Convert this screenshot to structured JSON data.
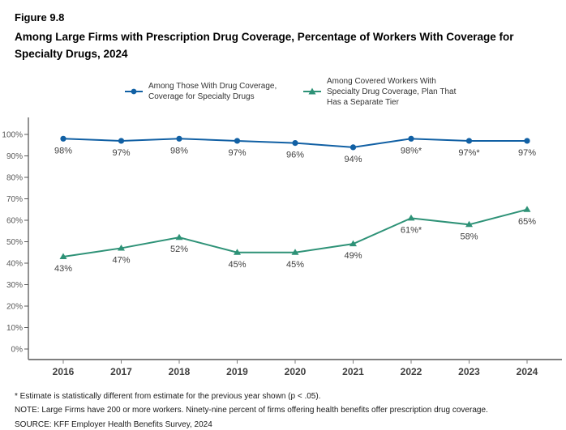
{
  "figure": {
    "number": "Figure 9.8",
    "title": "Among Large Firms with Prescription Drug Coverage, Percentage of Workers With Coverage for Specialty Drugs, 2024"
  },
  "legend": {
    "items": [
      {
        "label": "Among Those With Drug Coverage, Coverage for Specialty Drugs",
        "color": "#1160a4",
        "marker": "circle"
      },
      {
        "label": "Among Covered Workers With Specialty Drug Coverage, Plan That Has a Separate Tier",
        "color": "#2e9277",
        "marker": "triangle"
      }
    ]
  },
  "chart_data": {
    "type": "line",
    "title": "Among Large Firms with Prescription Drug Coverage, Percentage of Workers With Coverage for Specialty Drugs, 2024",
    "figure_number": "Figure 9.8",
    "categories": [
      "2016",
      "2017",
      "2018",
      "2019",
      "2020",
      "2021",
      "2022",
      "2023",
      "2024"
    ],
    "series": [
      {
        "name": "Among Those With Drug Coverage, Coverage for Specialty Drugs",
        "color": "#1160a4",
        "marker": "circle",
        "values": [
          98,
          97,
          98,
          97,
          96,
          94,
          98,
          97,
          97
        ],
        "labels": [
          "98%",
          "97%",
          "98%",
          "97%",
          "96%",
          "94%",
          "98%*",
          "97%*",
          "97%"
        ]
      },
      {
        "name": "Among Covered Workers With Specialty Drug Coverage, Plan That Has a Separate Tier",
        "color": "#2e9277",
        "marker": "triangle",
        "values": [
          43,
          47,
          52,
          45,
          45,
          49,
          61,
          58,
          65
        ],
        "labels": [
          "43%",
          "47%",
          "52%",
          "45%",
          "45%",
          "49%",
          "61%*",
          "58%",
          "65%"
        ]
      }
    ],
    "xlabel": "",
    "ylabel": "",
    "ylim": [
      0,
      100
    ],
    "y_ticks": [
      "0%",
      "10%",
      "20%",
      "30%",
      "40%",
      "50%",
      "60%",
      "70%",
      "80%",
      "90%",
      "100%"
    ],
    "grid": false,
    "legend_position": "top"
  },
  "footnotes": [
    "* Estimate is statistically different from estimate for the previous year shown (p < .05).",
    "NOTE: Large Firms have 200 or more workers. Ninety-nine percent of firms offering health benefits offer prescription drug coverage.",
    "SOURCE: KFF Employer Health Benefits Survey, 2024"
  ]
}
